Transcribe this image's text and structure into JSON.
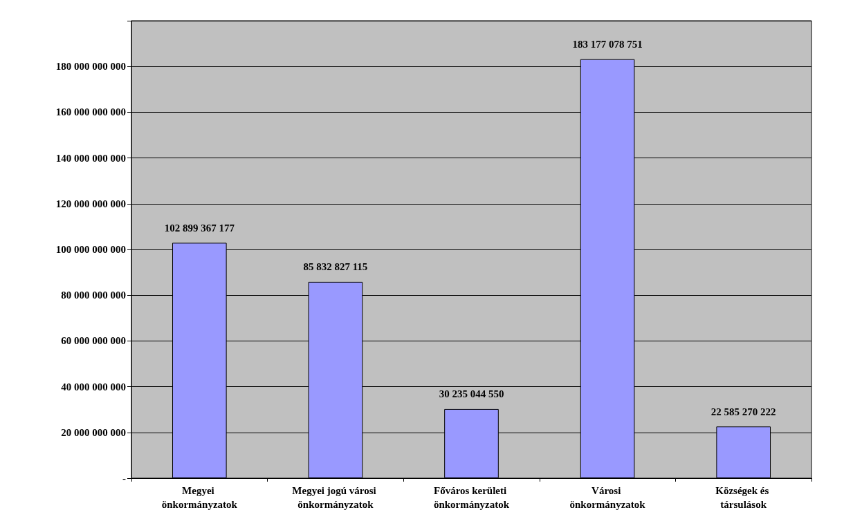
{
  "chart_data": {
    "type": "bar",
    "categories": [
      "Megyei önkormányzatok",
      "Megyei jogú városi önkormányzatok",
      "Főváros kerületi önkormányzatok",
      "Városi önkormányzatok",
      "Községek és társulások"
    ],
    "values": [
      102899367177,
      85832827115,
      30235044550,
      183177078751,
      22585270222
    ],
    "value_labels": [
      "102 899 367 177",
      "85 832 827 115",
      "30 235 044 550",
      "183 177 078 751",
      "22 585 270 222"
    ],
    "color": "#9999ff",
    "ylim": [
      0,
      200000000000
    ],
    "yticks": [
      {
        "value": 0,
        "label": "-"
      },
      {
        "value": 20000000000,
        "label": "20 000 000 000"
      },
      {
        "value": 40000000000,
        "label": "40 000 000 000"
      },
      {
        "value": 60000000000,
        "label": "60 000 000 000"
      },
      {
        "value": 80000000000,
        "label": "80 000 000 000"
      },
      {
        "value": 100000000000,
        "label": "100 000 000 000"
      },
      {
        "value": 120000000000,
        "label": "120 000 000 000"
      },
      {
        "value": 140000000000,
        "label": "140 000 000 000"
      },
      {
        "value": 160000000000,
        "label": "160 000 000 000"
      },
      {
        "value": 180000000000,
        "label": "180 000 000 000"
      },
      {
        "value": 200000000000,
        "label": null
      }
    ],
    "grid": "y"
  }
}
